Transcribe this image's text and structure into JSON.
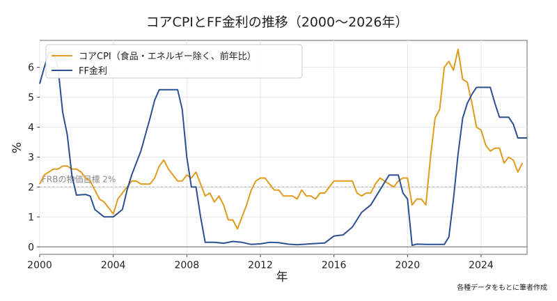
{
  "chart_data": {
    "type": "line",
    "title": "コアCPIとFF金利の推移（2000〜2026年）",
    "xlabel": "年",
    "ylabel": "%",
    "xlim": [
      2000,
      2026.5
    ],
    "ylim": [
      -0.25,
      6.9
    ],
    "x_ticks": [
      2000,
      2004,
      2008,
      2012,
      2016,
      2020,
      2024
    ],
    "y_ticks": [
      0,
      1,
      2,
      3,
      4,
      5,
      6
    ],
    "grid": true,
    "legend_position": "top-left",
    "colors": {
      "core_cpi": "#e09b1c",
      "ff_rate": "#2b4f93",
      "target": "#aaaaaa"
    },
    "reference_line": {
      "y": 2,
      "label": "FRBの物価目標 2%"
    },
    "source_note": "各種データをもとに筆者作成",
    "series": [
      {
        "name": "コアCPI（食品・エネルギー除く、前年比）",
        "color": "#e09b1c",
        "points": [
          [
            2000.0,
            2.1
          ],
          [
            2000.25,
            2.4
          ],
          [
            2000.5,
            2.5
          ],
          [
            2000.75,
            2.6
          ],
          [
            2001.0,
            2.6
          ],
          [
            2001.25,
            2.7
          ],
          [
            2001.5,
            2.7
          ],
          [
            2001.75,
            2.6
          ],
          [
            2002.0,
            2.6
          ],
          [
            2002.25,
            2.5
          ],
          [
            2002.5,
            2.3
          ],
          [
            2002.75,
            2.2
          ],
          [
            2003.0,
            1.9
          ],
          [
            2003.25,
            1.6
          ],
          [
            2003.5,
            1.5
          ],
          [
            2003.75,
            1.3
          ],
          [
            2004.0,
            1.1
          ],
          [
            2004.25,
            1.6
          ],
          [
            2004.5,
            1.8
          ],
          [
            2004.75,
            2.0
          ],
          [
            2005.0,
            2.2
          ],
          [
            2005.25,
            2.2
          ],
          [
            2005.5,
            2.1
          ],
          [
            2005.75,
            2.1
          ],
          [
            2006.0,
            2.1
          ],
          [
            2006.25,
            2.3
          ],
          [
            2006.5,
            2.7
          ],
          [
            2006.75,
            2.9
          ],
          [
            2007.0,
            2.6
          ],
          [
            2007.25,
            2.4
          ],
          [
            2007.5,
            2.2
          ],
          [
            2007.75,
            2.2
          ],
          [
            2008.0,
            2.4
          ],
          [
            2008.25,
            2.3
          ],
          [
            2008.5,
            2.5
          ],
          [
            2008.75,
            2.1
          ],
          [
            2009.0,
            1.7
          ],
          [
            2009.25,
            1.8
          ],
          [
            2009.5,
            1.5
          ],
          [
            2009.75,
            1.7
          ],
          [
            2010.0,
            1.4
          ],
          [
            2010.25,
            0.9
          ],
          [
            2010.5,
            0.9
          ],
          [
            2010.75,
            0.6
          ],
          [
            2011.0,
            1.0
          ],
          [
            2011.25,
            1.4
          ],
          [
            2011.5,
            1.9
          ],
          [
            2011.75,
            2.2
          ],
          [
            2012.0,
            2.3
          ],
          [
            2012.25,
            2.3
          ],
          [
            2012.5,
            2.1
          ],
          [
            2012.75,
            1.9
          ],
          [
            2013.0,
            1.9
          ],
          [
            2013.25,
            1.7
          ],
          [
            2013.5,
            1.7
          ],
          [
            2013.75,
            1.7
          ],
          [
            2014.0,
            1.6
          ],
          [
            2014.25,
            1.9
          ],
          [
            2014.5,
            1.7
          ],
          [
            2014.75,
            1.7
          ],
          [
            2015.0,
            1.6
          ],
          [
            2015.25,
            1.8
          ],
          [
            2015.5,
            1.8
          ],
          [
            2015.75,
            2.0
          ],
          [
            2016.0,
            2.2
          ],
          [
            2016.25,
            2.2
          ],
          [
            2016.5,
            2.2
          ],
          [
            2016.75,
            2.2
          ],
          [
            2017.0,
            2.2
          ],
          [
            2017.25,
            1.8
          ],
          [
            2017.5,
            1.7
          ],
          [
            2017.75,
            1.8
          ],
          [
            2018.0,
            1.8
          ],
          [
            2018.25,
            2.1
          ],
          [
            2018.5,
            2.3
          ],
          [
            2018.75,
            2.2
          ],
          [
            2019.0,
            2.1
          ],
          [
            2019.25,
            2.0
          ],
          [
            2019.5,
            2.2
          ],
          [
            2019.75,
            2.3
          ],
          [
            2020.0,
            2.3
          ],
          [
            2020.25,
            1.4
          ],
          [
            2020.5,
            1.6
          ],
          [
            2020.75,
            1.6
          ],
          [
            2021.0,
            1.4
          ],
          [
            2021.25,
            3.0
          ],
          [
            2021.5,
            4.3
          ],
          [
            2021.75,
            4.6
          ],
          [
            2022.0,
            6.0
          ],
          [
            2022.25,
            6.2
          ],
          [
            2022.5,
            5.9
          ],
          [
            2022.75,
            6.6
          ],
          [
            2023.0,
            5.6
          ],
          [
            2023.25,
            5.5
          ],
          [
            2023.5,
            4.8
          ],
          [
            2023.75,
            4.0
          ],
          [
            2024.0,
            3.9
          ],
          [
            2024.25,
            3.4
          ],
          [
            2024.5,
            3.2
          ],
          [
            2024.75,
            3.3
          ],
          [
            2025.0,
            3.3
          ],
          [
            2025.25,
            2.8
          ],
          [
            2025.5,
            3.0
          ],
          [
            2025.75,
            2.9
          ],
          [
            2026.0,
            2.5
          ],
          [
            2026.25,
            2.8
          ]
        ]
      },
      {
        "name": "FF金利",
        "color": "#2b4f93",
        "points": [
          [
            2000.0,
            5.45
          ],
          [
            2000.25,
            6.0
          ],
          [
            2000.5,
            6.5
          ],
          [
            2000.75,
            6.5
          ],
          [
            2001.0,
            5.98
          ],
          [
            2001.25,
            4.5
          ],
          [
            2001.5,
            3.75
          ],
          [
            2001.75,
            2.4
          ],
          [
            2002.0,
            1.73
          ],
          [
            2002.5,
            1.75
          ],
          [
            2002.75,
            1.7
          ],
          [
            2003.0,
            1.25
          ],
          [
            2003.5,
            1.0
          ],
          [
            2004.0,
            1.0
          ],
          [
            2004.5,
            1.25
          ],
          [
            2004.75,
            1.9
          ],
          [
            2005.0,
            2.4
          ],
          [
            2005.5,
            3.2
          ],
          [
            2006.0,
            4.3
          ],
          [
            2006.25,
            4.9
          ],
          [
            2006.5,
            5.25
          ],
          [
            2007.0,
            5.25
          ],
          [
            2007.5,
            5.25
          ],
          [
            2007.75,
            4.6
          ],
          [
            2008.0,
            3.0
          ],
          [
            2008.25,
            2.0
          ],
          [
            2008.5,
            2.0
          ],
          [
            2008.75,
            1.0
          ],
          [
            2009.0,
            0.15
          ],
          [
            2009.5,
            0.15
          ],
          [
            2010.0,
            0.12
          ],
          [
            2010.5,
            0.18
          ],
          [
            2011.0,
            0.15
          ],
          [
            2011.5,
            0.08
          ],
          [
            2012.0,
            0.1
          ],
          [
            2012.5,
            0.15
          ],
          [
            2013.0,
            0.14
          ],
          [
            2013.5,
            0.09
          ],
          [
            2014.0,
            0.07
          ],
          [
            2014.5,
            0.09
          ],
          [
            2015.0,
            0.11
          ],
          [
            2015.5,
            0.13
          ],
          [
            2016.0,
            0.36
          ],
          [
            2016.5,
            0.4
          ],
          [
            2017.0,
            0.66
          ],
          [
            2017.5,
            1.15
          ],
          [
            2018.0,
            1.4
          ],
          [
            2018.5,
            1.9
          ],
          [
            2019.0,
            2.4
          ],
          [
            2019.5,
            2.4
          ],
          [
            2019.75,
            1.8
          ],
          [
            2020.0,
            1.6
          ],
          [
            2020.25,
            0.05
          ],
          [
            2020.5,
            0.09
          ],
          [
            2021.0,
            0.08
          ],
          [
            2021.5,
            0.08
          ],
          [
            2022.0,
            0.08
          ],
          [
            2022.25,
            0.33
          ],
          [
            2022.5,
            1.6
          ],
          [
            2022.75,
            3.1
          ],
          [
            2023.0,
            4.3
          ],
          [
            2023.25,
            4.8
          ],
          [
            2023.5,
            5.1
          ],
          [
            2023.75,
            5.33
          ],
          [
            2024.0,
            5.33
          ],
          [
            2024.5,
            5.33
          ],
          [
            2024.75,
            4.8
          ],
          [
            2025.0,
            4.33
          ],
          [
            2025.5,
            4.33
          ],
          [
            2025.75,
            4.1
          ],
          [
            2026.0,
            3.64
          ],
          [
            2026.5,
            3.64
          ]
        ]
      }
    ]
  }
}
